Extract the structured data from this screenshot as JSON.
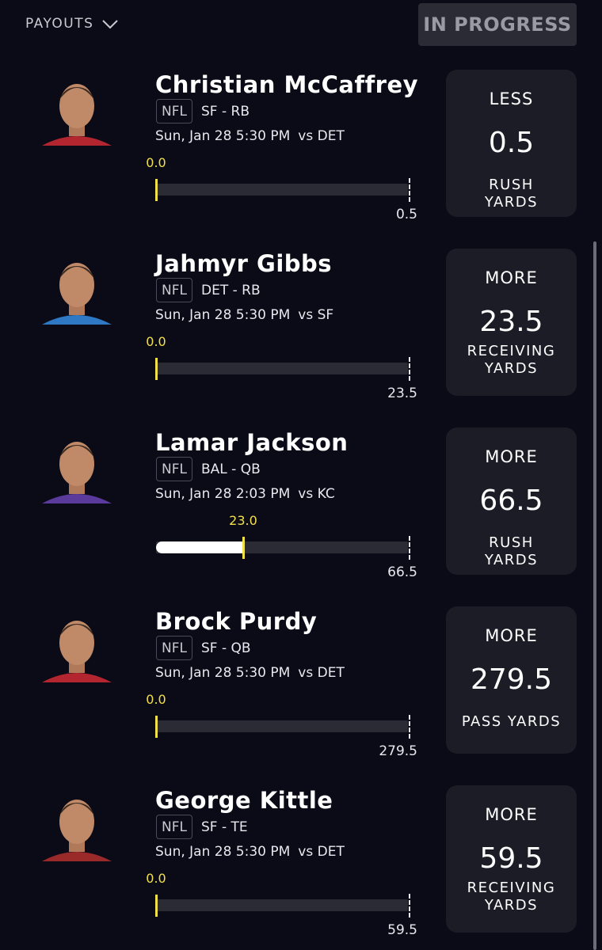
{
  "header": {
    "menu": "PAYOUTS",
    "status": "IN PROGRESS"
  },
  "picks": [
    {
      "name": "Christian McCaffrey",
      "league": "NFL",
      "team_position": "SF - RB",
      "game_time": "Sun, Jan 28 5:30 PM",
      "opponent": "vs DET",
      "current": {
        "value": 0,
        "label": "0.0"
      },
      "line": 0.5,
      "direction": "LESS",
      "stat": "RUSH YARDS"
    },
    {
      "name": "Jahmyr Gibbs",
      "league": "NFL",
      "team_position": "DET - RB",
      "game_time": "Sun, Jan 28 5:30 PM",
      "opponent": "vs SF",
      "current": {
        "value": 0,
        "label": "0.0"
      },
      "line": 23.5,
      "direction": "MORE",
      "stat": "RECEIVING YARDS"
    },
    {
      "name": "Lamar Jackson",
      "league": "NFL",
      "team_position": "BAL - QB",
      "game_time": "Sun, Jan 28 2:03 PM",
      "opponent": "vs KC",
      "current": {
        "value": 23,
        "label": "23.0"
      },
      "line": 66.5,
      "direction": "MORE",
      "stat": "RUSH YARDS"
    },
    {
      "name": "Brock Purdy",
      "league": "NFL",
      "team_position": "SF - QB",
      "game_time": "Sun, Jan 28 5:30 PM",
      "opponent": "vs DET",
      "current": {
        "value": 0,
        "label": "0.0"
      },
      "line": 279.5,
      "direction": "MORE",
      "stat": "PASS YARDS"
    },
    {
      "name": "George Kittle",
      "league": "NFL",
      "team_position": "SF - TE",
      "game_time": "Sun, Jan 28 5:30 PM",
      "opponent": "vs DET",
      "current": {
        "value": 0,
        "label": "0.0"
      },
      "line": 59.5,
      "direction": "MORE",
      "stat": "RECEIVING YARDS"
    }
  ]
}
